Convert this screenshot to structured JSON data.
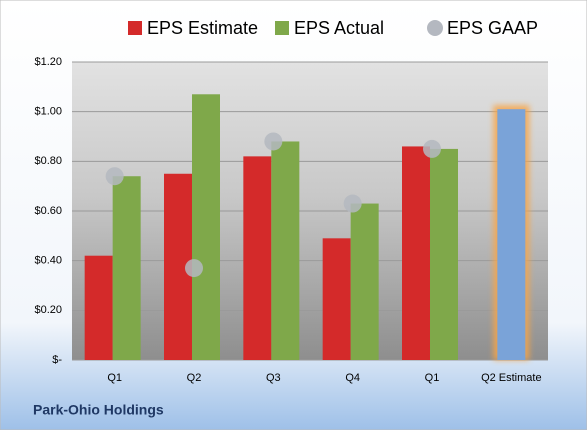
{
  "chart_data": {
    "type": "bar",
    "categories": [
      "Q1",
      "Q2",
      "Q3",
      "Q4",
      "Q1",
      "Q2 Estimate"
    ],
    "series": [
      {
        "name": "EPS Estimate",
        "color": "#d42a2a",
        "values": [
          0.42,
          0.75,
          0.82,
          0.49,
          0.86,
          1.01
        ]
      },
      {
        "name": "EPS Actual",
        "color": "#7fa84a",
        "values": [
          0.74,
          1.07,
          0.88,
          0.63,
          0.85,
          null
        ]
      },
      {
        "name": "EPS GAAP",
        "color": "#b4b8c0",
        "marker": "circle",
        "values": [
          0.74,
          0.37,
          0.88,
          0.63,
          0.85,
          null
        ]
      }
    ],
    "highlight_color": "#7aa3d8",
    "ylim": [
      0,
      1.2
    ],
    "yticks": [
      {
        "value": 0,
        "label": "$-"
      },
      {
        "value": 0.2,
        "label": "$0.20"
      },
      {
        "value": 0.4,
        "label": "$0.40"
      },
      {
        "value": 0.6,
        "label": "$0.60"
      },
      {
        "value": 0.8,
        "label": "$0.80"
      },
      {
        "value": 1.0,
        "label": "$1.00"
      },
      {
        "value": 1.2,
        "label": "$1.20"
      }
    ],
    "grid": true,
    "legend": "top",
    "footer": "Park-Ohio Holdings"
  }
}
